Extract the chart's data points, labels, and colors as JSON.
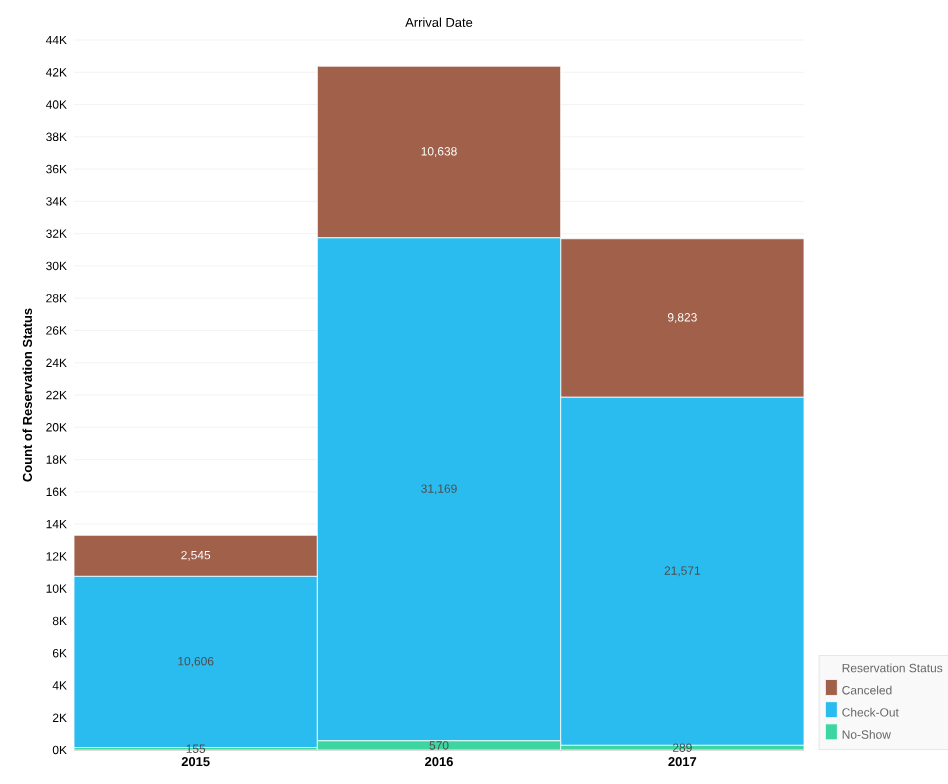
{
  "chart_data": {
    "type": "bar",
    "stacked": true,
    "title": "Arrival Date",
    "ylabel": "Count of Reservation Status",
    "legend_title": "Reservation Status",
    "legend": "bottom right",
    "grid": "y",
    "categories": [
      "2015",
      "2016",
      "2017"
    ],
    "series": [
      {
        "name": "No-Show",
        "color": "#3ed6a0",
        "values": [
          155,
          570,
          289
        ],
        "value_labels": [
          "155",
          "570",
          "289"
        ]
      },
      {
        "name": "Check-Out",
        "color": "#2bbcef",
        "values": [
          10606,
          31169,
          21571
        ],
        "value_labels": [
          "10,606",
          "31,169",
          "21,571"
        ]
      },
      {
        "name": "Canceled",
        "color": "#a0604a",
        "values": [
          2545,
          10638,
          9823
        ],
        "value_labels": [
          "2,545",
          "10,638",
          "9,823"
        ]
      }
    ],
    "ylim": [
      0,
      44000
    ],
    "yticks": [
      {
        "value": 0,
        "label": "0K"
      },
      {
        "value": 2000,
        "label": "2K"
      },
      {
        "value": 4000,
        "label": "4K"
      },
      {
        "value": 6000,
        "label": "6K"
      },
      {
        "value": 8000,
        "label": "8K"
      },
      {
        "value": 10000,
        "label": "10K"
      },
      {
        "value": 12000,
        "label": "12K"
      },
      {
        "value": 14000,
        "label": "14K"
      },
      {
        "value": 16000,
        "label": "16K"
      },
      {
        "value": 18000,
        "label": "18K"
      },
      {
        "value": 20000,
        "label": "20K"
      },
      {
        "value": 22000,
        "label": "22K"
      },
      {
        "value": 24000,
        "label": "24K"
      },
      {
        "value": 26000,
        "label": "26K"
      },
      {
        "value": 28000,
        "label": "28K"
      },
      {
        "value": 30000,
        "label": "30K"
      },
      {
        "value": 32000,
        "label": "32K"
      },
      {
        "value": 34000,
        "label": "34K"
      },
      {
        "value": 36000,
        "label": "36K"
      },
      {
        "value": 38000,
        "label": "38K"
      },
      {
        "value": 40000,
        "label": "40K"
      },
      {
        "value": 42000,
        "label": "42K"
      },
      {
        "value": 44000,
        "label": "44K"
      }
    ]
  }
}
